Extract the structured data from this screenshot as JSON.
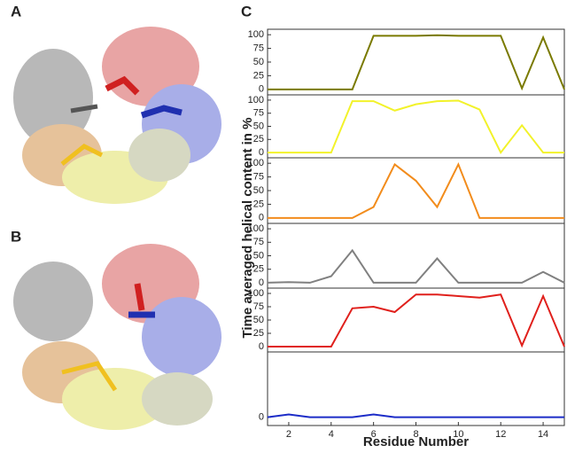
{
  "figure": {
    "panel_labels": [
      "A",
      "B",
      "C"
    ],
    "ylabel": "Time averaged helical content in %"
  },
  "chart_data": [
    {
      "type": "line",
      "color": "#7a7a00",
      "x": [
        1,
        2,
        3,
        4,
        5,
        6,
        7,
        8,
        9,
        10,
        11,
        12,
        13,
        14,
        15
      ],
      "values": [
        0,
        0,
        0,
        0,
        0,
        98,
        98,
        98,
        99,
        98,
        98,
        98,
        2,
        95,
        0
      ],
      "xlim": [
        1,
        15
      ],
      "ylim": [
        -10,
        110
      ],
      "yticks": [
        0,
        25,
        50,
        75,
        100
      ]
    },
    {
      "type": "line",
      "color": "#f2f22a",
      "x": [
        1,
        2,
        3,
        4,
        5,
        6,
        7,
        8,
        9,
        10,
        11,
        12,
        13,
        14,
        15
      ],
      "values": [
        0,
        0,
        0,
        0,
        98,
        98,
        80,
        92,
        98,
        99,
        82,
        0,
        52,
        0,
        0
      ],
      "xlim": [
        1,
        15
      ],
      "ylim": [
        -10,
        110
      ],
      "yticks": [
        0,
        25,
        50,
        75,
        100
      ]
    },
    {
      "type": "line",
      "color": "#f28c1c",
      "x": [
        1,
        2,
        3,
        4,
        5,
        6,
        7,
        8,
        9,
        10,
        11,
        12,
        13,
        14,
        15
      ],
      "values": [
        0,
        0,
        0,
        0,
        0,
        20,
        98,
        68,
        20,
        98,
        0,
        0,
        0,
        0,
        0
      ],
      "xlim": [
        1,
        15
      ],
      "ylim": [
        -10,
        110
      ],
      "yticks": [
        0,
        25,
        50,
        75,
        100
      ]
    },
    {
      "type": "line",
      "color": "#808080",
      "x": [
        1,
        2,
        3,
        4,
        5,
        6,
        7,
        8,
        9,
        10,
        11,
        12,
        13,
        14,
        15
      ],
      "values": [
        0,
        1,
        0,
        12,
        60,
        0,
        0,
        0,
        45,
        0,
        0,
        0,
        0,
        20,
        0
      ],
      "xlim": [
        1,
        15
      ],
      "ylim": [
        -10,
        110
      ],
      "yticks": [
        0,
        25,
        50,
        75,
        100
      ]
    },
    {
      "type": "line",
      "color": "#e0201c",
      "x": [
        1,
        2,
        3,
        4,
        5,
        6,
        7,
        8,
        9,
        10,
        11,
        12,
        13,
        14,
        15
      ],
      "values": [
        0,
        0,
        0,
        0,
        72,
        75,
        65,
        98,
        98,
        95,
        92,
        98,
        2,
        95,
        0
      ],
      "xlim": [
        1,
        15
      ],
      "ylim": [
        -10,
        110
      ],
      "yticks": [
        0,
        25,
        50,
        75,
        100
      ]
    },
    {
      "type": "line",
      "color": "#1c2cc8",
      "x": [
        1,
        2,
        3,
        4,
        5,
        6,
        7,
        8,
        9,
        10,
        11,
        12,
        13,
        14,
        15
      ],
      "values": [
        0,
        5,
        0,
        0,
        0,
        5,
        0,
        0,
        0,
        0,
        0,
        0,
        0,
        0,
        0
      ],
      "xlim": [
        1,
        15
      ],
      "ylim": [
        -15,
        118
      ],
      "yticks": [
        0
      ],
      "xticks": [
        2,
        4,
        6,
        8,
        10,
        12,
        14
      ],
      "xlabel": "Residue Number"
    }
  ]
}
